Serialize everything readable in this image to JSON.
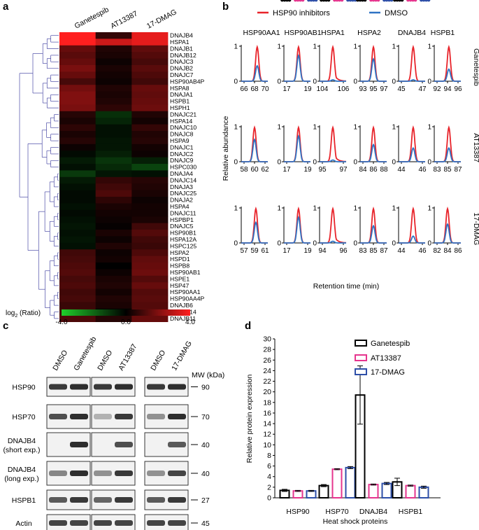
{
  "panel_labels": [
    "a",
    "b",
    "c",
    "d"
  ],
  "panel_a": {
    "columns": [
      "Ganetespib",
      "AT13387",
      "17-DMAG"
    ],
    "rows": [
      "DNAJB4",
      "HSPA1",
      "DNAJB1",
      "DNAJB12",
      "DNAJC3",
      "DNAJB2",
      "DNAJC7",
      "HSP90AB4P",
      "HSPA8",
      "DNAJA1",
      "HSPB1",
      "HSPH1",
      "DNAJC21",
      "HSPA14",
      "DNAJC10",
      "DNAJC8",
      "HSPA9",
      "DNAJC1",
      "DNAJC2",
      "DNAJC9",
      "HSPC030",
      "DNAJA4",
      "DNAJC14",
      "DNAJA3",
      "DNAJC25",
      "DNAJA2",
      "HSPA4",
      "DNAJC11",
      "HSPBP1",
      "DNAJC5",
      "HSP90B1",
      "HSPA12A",
      "HSPC125",
      "HSPA2",
      "HSPD1",
      "HSPB8",
      "HSP90AB1",
      "HSPE1",
      "HSP47",
      "HSP90AA1",
      "HSP90AA4P",
      "DNAJB6",
      "DNAJB14",
      "DNAJB11"
    ],
    "values": [
      [
        4.0,
        0.8,
        3.6
      ],
      [
        4.0,
        3.2,
        3.6
      ],
      [
        1.6,
        0.5,
        1.5
      ],
      [
        1.4,
        0.4,
        1.3
      ],
      [
        1.6,
        0.2,
        1.1
      ],
      [
        1.9,
        0.4,
        1.4
      ],
      [
        1.6,
        0.3,
        1.2
      ],
      [
        1.1,
        0.2,
        1.0
      ],
      [
        1.8,
        0.5,
        1.6
      ],
      [
        2.0,
        0.4,
        1.5
      ],
      [
        2.0,
        0.5,
        1.6
      ],
      [
        1.9,
        0.7,
        1.7
      ],
      [
        0.6,
        -0.9,
        0.5
      ],
      [
        0.4,
        -0.7,
        0.3
      ],
      [
        0.7,
        -0.3,
        0.8
      ],
      [
        0.4,
        -0.3,
        0.5
      ],
      [
        0.6,
        -0.4,
        0.6
      ],
      [
        0.2,
        -0.4,
        0.3
      ],
      [
        -0.2,
        -0.6,
        0.2
      ],
      [
        -0.5,
        -1.0,
        -0.6
      ],
      [
        -0.3,
        -0.8,
        -1.3
      ],
      [
        -1.1,
        -0.4,
        -0.3
      ],
      [
        -0.5,
        0.8,
        0.6
      ],
      [
        -0.3,
        1.0,
        0.5
      ],
      [
        -0.2,
        1.2,
        0.4
      ],
      [
        -0.2,
        0.7,
        0.2
      ],
      [
        -0.3,
        0.4,
        0.3
      ],
      [
        -0.2,
        0.3,
        0.3
      ],
      [
        -0.3,
        0.2,
        0.4
      ],
      [
        -0.4,
        0.1,
        1.0
      ],
      [
        -0.3,
        0.4,
        1.3
      ],
      [
        -0.4,
        0.2,
        1.0
      ],
      [
        -0.3,
        0.5,
        0.9
      ],
      [
        1.0,
        0.2,
        1.2
      ],
      [
        1.1,
        0.3,
        1.5
      ],
      [
        1.2,
        0.0,
        1.6
      ],
      [
        1.3,
        0.2,
        1.7
      ],
      [
        1.1,
        0.4,
        1.3
      ],
      [
        1.2,
        0.5,
        1.6
      ],
      [
        1.0,
        0.3,
        1.3
      ],
      [
        1.1,
        0.5,
        1.4
      ],
      [
        0.9,
        0.4,
        1.3
      ],
      [
        1.0,
        -0.1,
        1.4
      ],
      [
        1.2,
        0.6,
        1.6
      ]
    ],
    "colorbar": {
      "label_pre": "log",
      "label_sub": "2",
      "label_post": " (Ratio)",
      "ticks": [
        "-4.0",
        "0.0",
        "4.0"
      ]
    },
    "colors": {
      "low": "#1fcf2a",
      "mid": "#000000",
      "high": "#ff1f1f"
    }
  },
  "panel_b": {
    "legend": [
      "HSP90 inhibitors",
      "DMSO"
    ],
    "colors": {
      "inhibitor": "#e8232a",
      "dmso": "#2f73c4"
    },
    "proteins": [
      "HSP90AA1",
      "HSP90AB1",
      "HSPA1",
      "HSPA2",
      "DNAJB4",
      "HSPB1"
    ],
    "row_labels": [
      "Ganetespib",
      "AT13387",
      "17-DMAG"
    ],
    "y_ticks": [
      "0",
      "1"
    ],
    "ylabel": "Relative abundance",
    "xlabel": "Retention time (min)",
    "x_ticks": [
      [
        [
          "66",
          "68",
          "70"
        ],
        [
          "17",
          "19"
        ],
        [
          "104",
          "106"
        ],
        [
          "93",
          "95",
          "97"
        ],
        [
          "45",
          "47"
        ],
        [
          "92",
          "94",
          "96"
        ]
      ],
      [
        [
          "58",
          "60",
          "62"
        ],
        [
          "17",
          "19"
        ],
        [
          "95",
          "97"
        ],
        [
          "84",
          "86",
          "88"
        ],
        [
          "44",
          "46"
        ],
        [
          "83",
          "85",
          "87"
        ]
      ],
      [
        [
          "57",
          "59",
          "61"
        ],
        [
          "17",
          "19"
        ],
        [
          "94",
          "96"
        ],
        [
          "83",
          "85",
          "87"
        ],
        [
          "44",
          "46"
        ],
        [
          "82",
          "84",
          "86"
        ]
      ]
    ]
  },
  "panel_c": {
    "groups": [
      [
        "DMSO",
        "Ganetespib"
      ],
      [
        "DMSO",
        "AT13387"
      ],
      [
        "DMSO",
        "17-DMAG"
      ]
    ],
    "mw_header": "MW (kDa)",
    "blots": [
      {
        "line1": "HSP90",
        "line2": "",
        "mw": "90"
      },
      {
        "line1": "HSP70",
        "line2": "",
        "mw": "70"
      },
      {
        "line1": "DNAJB4",
        "line2": "(short exp.)",
        "mw": "40"
      },
      {
        "line1": "DNAJB4",
        "line2": "(long exp.)",
        "mw": "40"
      },
      {
        "line1": "HSPB1",
        "line2": "",
        "mw": "27"
      },
      {
        "line1": "Actin",
        "line2": "",
        "mw": "45"
      }
    ],
    "band_intensity": [
      [
        [
          0.9,
          0.95
        ],
        [
          0.9,
          0.95
        ],
        [
          0.9,
          0.95
        ]
      ],
      [
        [
          0.8,
          0.95
        ],
        [
          0.35,
          0.9
        ],
        [
          0.5,
          0.95
        ]
      ],
      [
        [
          0.05,
          0.95
        ],
        [
          0.05,
          0.8
        ],
        [
          0.05,
          0.75
        ]
      ],
      [
        [
          0.55,
          0.95
        ],
        [
          0.5,
          0.9
        ],
        [
          0.5,
          0.85
        ]
      ],
      [
        [
          0.75,
          0.9
        ],
        [
          0.7,
          0.9
        ],
        [
          0.75,
          0.9
        ]
      ],
      [
        [
          0.85,
          0.85
        ],
        [
          0.85,
          0.85
        ],
        [
          0.85,
          0.85
        ]
      ]
    ]
  },
  "chart_data": {
    "type": "bar",
    "categories": [
      "HSP90",
      "HSP70",
      "DNAJB4",
      "HSPB1"
    ],
    "series": [
      {
        "name": "Ganetespib",
        "values": [
          1.4,
          2.3,
          19.4,
          3.0
        ],
        "err": [
          0.2,
          0.2,
          5.5,
          0.7
        ],
        "points": [
          [
            1.2,
            1.5,
            1.4
          ],
          [
            2.2,
            2.4,
            2.3
          ],
          [
            13.9,
            24.9,
            19.4
          ],
          [
            2.4,
            3.6,
            3.0
          ]
        ]
      },
      {
        "name": "AT13387",
        "values": [
          1.3,
          5.4,
          2.5,
          2.3
        ],
        "err": [
          0.1,
          0.1,
          0.1,
          0.1
        ],
        "points": [
          [
            1.2,
            1.3,
            1.3
          ],
          [
            5.3,
            5.4,
            5.5
          ],
          [
            2.4,
            2.5,
            2.5
          ],
          [
            2.2,
            2.3,
            2.3
          ]
        ]
      },
      {
        "name": "17-DMAG",
        "values": [
          1.3,
          5.7,
          2.7,
          2.0
        ],
        "err": [
          0.1,
          0.2,
          0.2,
          0.2
        ],
        "points": [
          [
            1.2,
            1.3,
            1.4
          ],
          [
            5.5,
            5.7,
            5.8
          ],
          [
            2.6,
            2.7,
            2.8
          ],
          [
            1.9,
            2.0,
            2.1
          ]
        ]
      }
    ],
    "colors": [
      "#000000",
      "#e6358e",
      "#2e4fa8"
    ],
    "xlabel": "Heat shock proteins",
    "ylabel": "Relative protein expression",
    "ylim": [
      0,
      30
    ],
    "yticks": [
      0,
      2,
      4,
      6,
      8,
      10,
      12,
      14,
      16,
      18,
      20,
      22,
      24,
      26,
      28,
      30
    ],
    "legend_position": "top-right"
  }
}
